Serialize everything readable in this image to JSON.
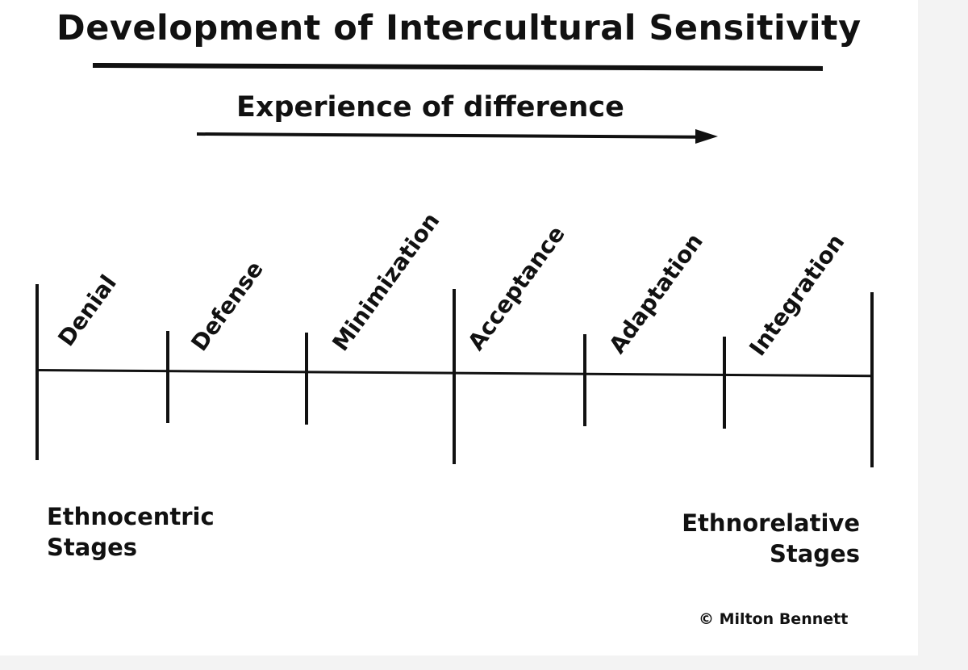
{
  "title": "Development of Intercultural Sensitivity",
  "arrow_label": "Experience of difference",
  "stages": [
    "Denial",
    "Defense",
    "Minimization",
    "Acceptance",
    "Adaptation",
    "Integration"
  ],
  "groups": {
    "ethnocentric": {
      "line1": "Ethnocentric",
      "line2": "Stages"
    },
    "ethnorelative": {
      "line1": "Ethnorelative",
      "line2": "Stages"
    }
  },
  "copyright": "© Milton Bennett"
}
